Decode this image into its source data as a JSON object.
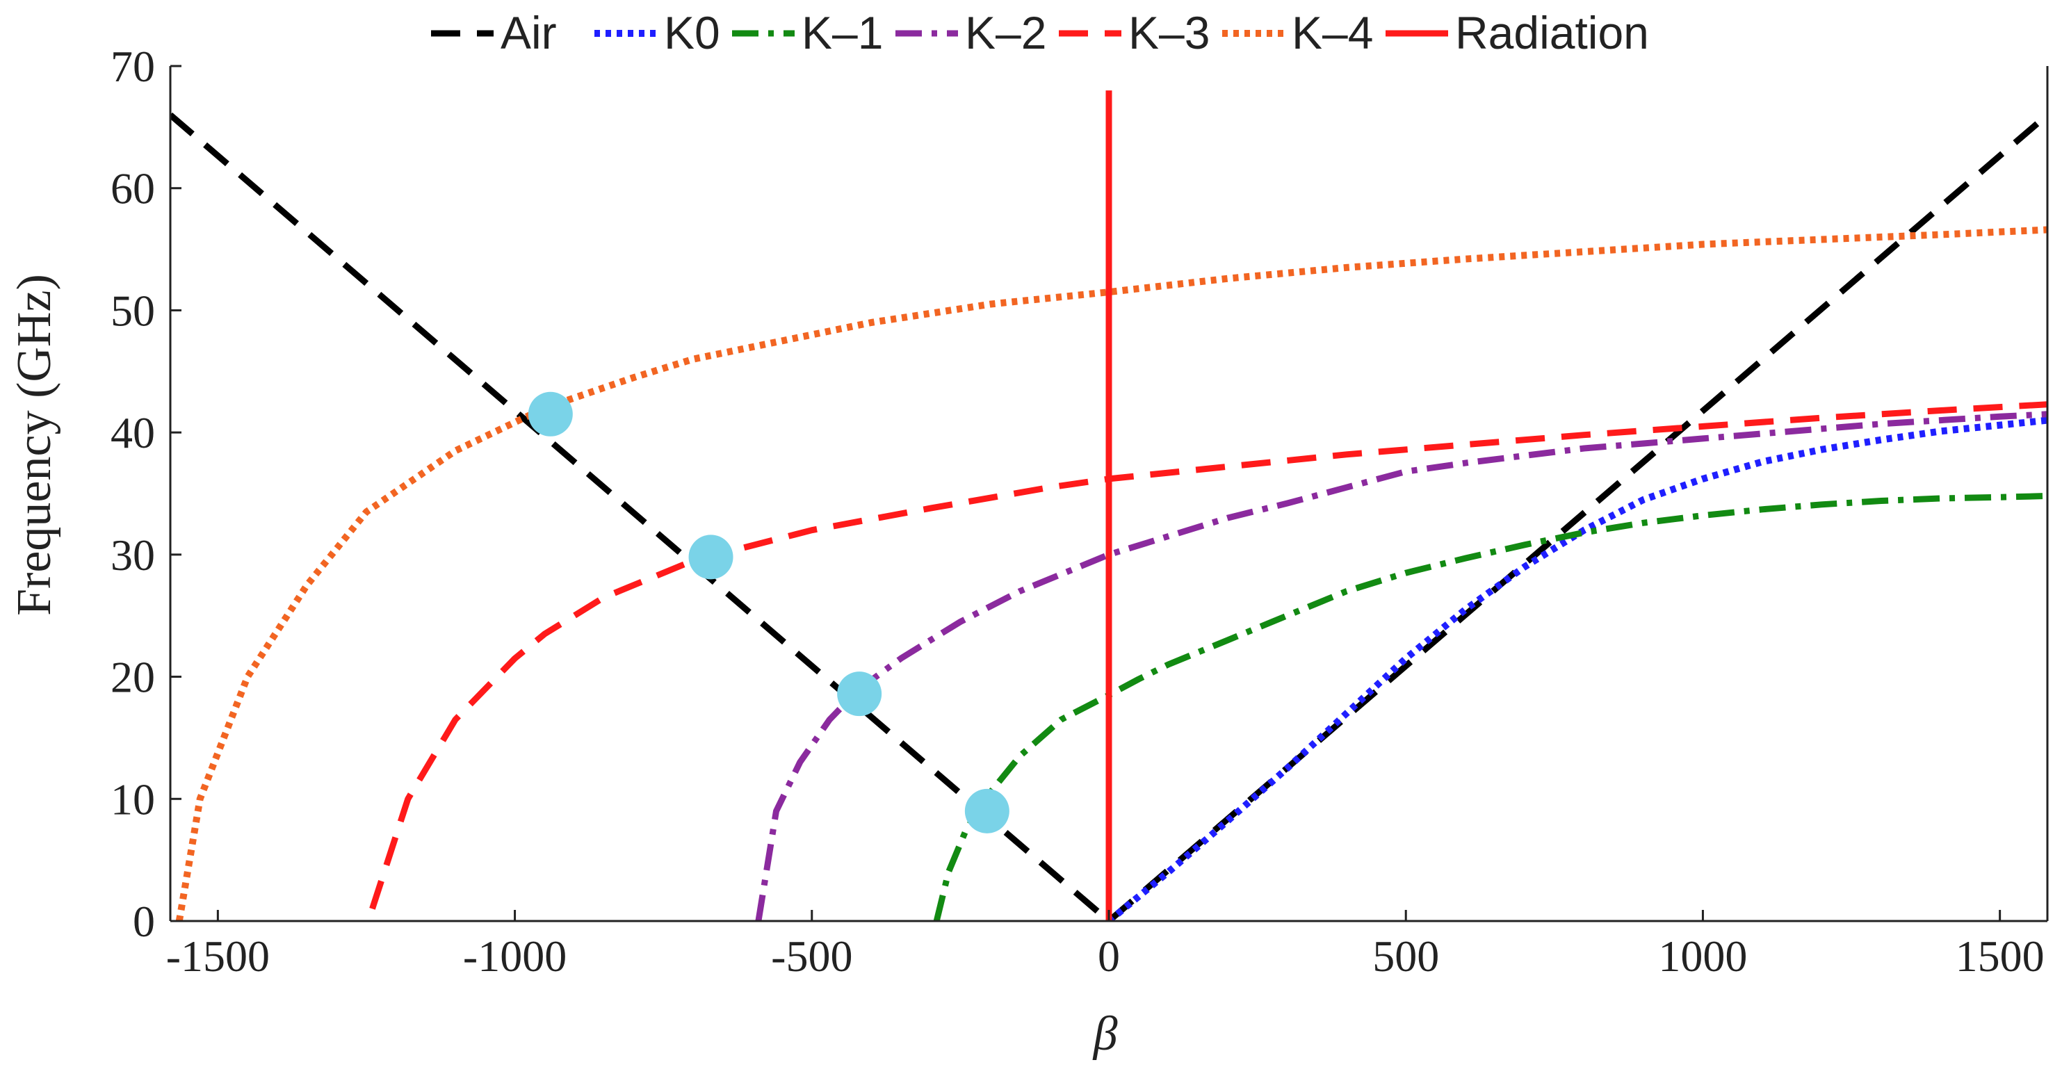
{
  "chart_data": {
    "type": "line",
    "title": "",
    "xlabel": "β",
    "ylabel": "Frequency (GHz)",
    "xlim": [
      -1580,
      1580
    ],
    "ylim": [
      0,
      70
    ],
    "xticks": [
      -1500,
      -1000,
      -500,
      0,
      500,
      1000,
      1500
    ],
    "xtick_labels": [
      "-1500",
      "-1000",
      "-500",
      "0",
      "500",
      "1000",
      "1500"
    ],
    "yticks": [
      0,
      10,
      20,
      30,
      40,
      50,
      60,
      70
    ],
    "ytick_labels": [
      "0",
      "10",
      "20",
      "30",
      "40",
      "50",
      "60",
      "70"
    ],
    "grid": false,
    "legend_position": "top",
    "series": [
      {
        "name": "Air",
        "color": "#000000",
        "style": "dashed",
        "x": [
          -1580,
          0,
          1580
        ],
        "y": [
          66,
          0,
          66
        ]
      },
      {
        "name": "K0",
        "color": "#1f1fff",
        "style": "dotted",
        "x": [
          0,
          100,
          200,
          300,
          400,
          500,
          600,
          700,
          800,
          900,
          1000,
          1100,
          1200,
          1300,
          1400,
          1500,
          1580
        ],
        "y": [
          0,
          4,
          8.2,
          12.5,
          17,
          21.5,
          25.5,
          29,
          32,
          34.5,
          36.2,
          37.6,
          38.6,
          39.4,
          40.1,
          40.6,
          41
        ]
      },
      {
        "name": "K–1",
        "color": "#128a12",
        "style": "dashdot",
        "x": [
          -290,
          -270,
          -240,
          -200,
          -150,
          -80,
          0,
          50,
          100,
          200,
          300,
          400,
          500,
          600,
          700,
          800,
          900,
          1000,
          1100,
          1200,
          1300,
          1400,
          1500,
          1580
        ],
        "y": [
          0,
          4,
          7.5,
          10.5,
          13.5,
          16.5,
          18.5,
          19.8,
          21,
          23,
          25,
          27,
          28.5,
          29.7,
          30.8,
          31.8,
          32.6,
          33.2,
          33.7,
          34.1,
          34.4,
          34.6,
          34.7,
          34.8
        ]
      },
      {
        "name": "K–2",
        "color": "#8b2a9e",
        "style": "dashdot",
        "x": [
          -590,
          -560,
          -520,
          -470,
          -420,
          -350,
          -250,
          -150,
          0,
          100,
          200,
          300,
          400,
          500,
          600,
          700,
          800,
          900,
          1000,
          1100,
          1200,
          1300,
          1400,
          1500,
          1580
        ],
        "y": [
          0,
          9,
          13,
          16.5,
          19,
          21.5,
          24.5,
          27,
          30,
          31.5,
          33,
          34.2,
          35.5,
          36.8,
          37.5,
          38.1,
          38.7,
          39.1,
          39.5,
          39.9,
          40.3,
          40.7,
          41,
          41.3,
          41.5
        ]
      },
      {
        "name": "K–3",
        "color": "#ff1a1a",
        "style": "dashed",
        "x": [
          -1240,
          -1180,
          -1100,
          -1000,
          -950,
          -850,
          -700,
          -500,
          -300,
          -100,
          0,
          200,
          400,
          600,
          800,
          1000,
          1200,
          1400,
          1580
        ],
        "y": [
          1,
          10,
          16.5,
          21.5,
          23.5,
          26.5,
          29.5,
          32,
          33.8,
          35.5,
          36.2,
          37.2,
          38.2,
          39,
          39.8,
          40.5,
          41.2,
          41.8,
          42.3
        ]
      },
      {
        "name": "K–4",
        "color": "#f26522",
        "style": "dotted",
        "x": [
          -1565,
          -1530,
          -1450,
          -1350,
          -1250,
          -1100,
          -950,
          -800,
          -700,
          -600,
          -400,
          -200,
          0,
          200,
          400,
          600,
          800,
          1000,
          1200,
          1400,
          1580
        ],
        "y": [
          0,
          10,
          20,
          27.5,
          33.5,
          38.5,
          42,
          44.5,
          46,
          47,
          49,
          50.5,
          51.5,
          52.6,
          53.5,
          54.2,
          54.8,
          55.4,
          55.8,
          56.2,
          56.6
        ]
      },
      {
        "name": "Radiation",
        "color": "#ff1a1a",
        "style": "solid",
        "x": [
          0,
          0
        ],
        "y": [
          0,
          68
        ]
      }
    ],
    "markers": {
      "color": "#7ad3e8",
      "points": [
        {
          "x": -940,
          "y": 41.5
        },
        {
          "x": -670,
          "y": 29.8
        },
        {
          "x": -420,
          "y": 18.6
        },
        {
          "x": -205,
          "y": 9
        }
      ]
    }
  }
}
